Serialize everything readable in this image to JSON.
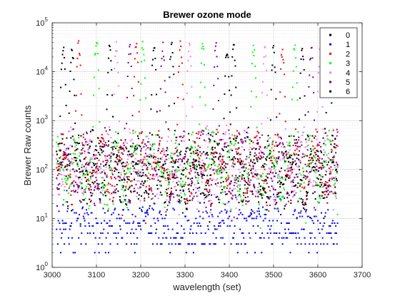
{
  "chart_data": {
    "type": "scatter",
    "title": "Brewer ozone mode",
    "xlabel": "wavelength (set)",
    "ylabel": "Brewer Raw counts",
    "xlim": [
      3000,
      3700
    ],
    "ylim": [
      1,
      100000
    ],
    "yscale": "log",
    "grid": true,
    "legend_position": "top-right",
    "x_ticks": [
      "3000",
      "3100",
      "3200",
      "3300",
      "3400",
      "3500",
      "3600",
      "3700"
    ],
    "y_ticks": [
      {
        "base": "10",
        "exp": "0"
      },
      {
        "base": "10",
        "exp": "1"
      },
      {
        "base": "10",
        "exp": "2"
      },
      {
        "base": "10",
        "exp": "3"
      },
      {
        "base": "10",
        "exp": "4"
      },
      {
        "base": "10",
        "exp": "5"
      }
    ],
    "series": [
      {
        "name": "0",
        "color": "#000000",
        "x_range": [
          3010,
          3645
        ],
        "baseline": 120,
        "peaks": [
          {
            "x": 3025,
            "y": 40000
          },
          {
            "x": 3270,
            "y": 38000
          },
          {
            "x": 3410,
            "y": 35000
          },
          {
            "x": 3565,
            "y": 30000
          },
          {
            "x": 3625,
            "y": 30000
          }
        ]
      },
      {
        "name": "1",
        "color": "#0000ff",
        "x_range": [
          3010,
          3645
        ],
        "baseline": 6,
        "peaks": []
      },
      {
        "name": "2",
        "color": "#ff0000",
        "x_range": [
          3010,
          3645
        ],
        "baseline": 110,
        "peaks": [
          {
            "x": 3060,
            "y": 40000
          },
          {
            "x": 3190,
            "y": 38000
          },
          {
            "x": 3290,
            "y": 40000
          },
          {
            "x": 3520,
            "y": 30000
          }
        ]
      },
      {
        "name": "3",
        "color": "#00ff00",
        "x_range": [
          3010,
          3645
        ],
        "baseline": 100,
        "peaks": [
          {
            "x": 3100,
            "y": 50000
          },
          {
            "x": 3205,
            "y": 38000
          },
          {
            "x": 3340,
            "y": 36000
          },
          {
            "x": 3455,
            "y": 32000
          },
          {
            "x": 3548,
            "y": 35000
          }
        ]
      },
      {
        "name": "4",
        "color": "#ee82ee",
        "x_range": [
          3010,
          3645
        ],
        "baseline": 130,
        "peaks": [
          {
            "x": 3145,
            "y": 38000
          },
          {
            "x": 3310,
            "y": 38000
          },
          {
            "x": 3480,
            "y": 33000
          },
          {
            "x": 3605,
            "y": 27000
          }
        ]
      },
      {
        "name": "5",
        "color": "#800080",
        "x_range": [
          3010,
          3645
        ],
        "baseline": 115,
        "peaks": [
          {
            "x": 3175,
            "y": 35000
          },
          {
            "x": 3250,
            "y": 37000
          },
          {
            "x": 3370,
            "y": 35000
          },
          {
            "x": 3585,
            "y": 32000
          }
        ]
      },
      {
        "name": "6",
        "color": "#000000",
        "x_range": [
          3010,
          3645
        ],
        "baseline": 90,
        "peaks": [
          {
            "x": 3045,
            "y": 30000
          },
          {
            "x": 3130,
            "y": 36000
          },
          {
            "x": 3230,
            "y": 37000
          },
          {
            "x": 3395,
            "y": 34000
          },
          {
            "x": 3500,
            "y": 31000
          }
        ]
      }
    ]
  }
}
